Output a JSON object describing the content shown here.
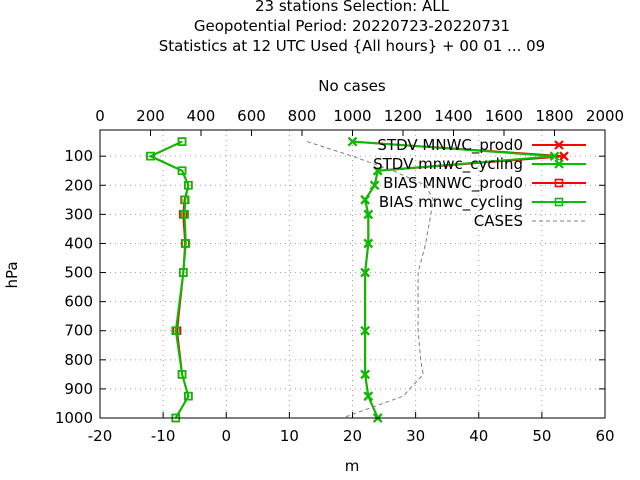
{
  "chart_data": {
    "type": "line",
    "title_lines": [
      "23 stations Selection: ALL",
      "Geopotential  Period: 20220723-20220731",
      "Statistics at 12 UTC  Used {All hours} + 00 01 ... 09"
    ],
    "xlabel": "m",
    "x2label": "No cases",
    "ylabel": "hPa",
    "xlim": [
      -20,
      60
    ],
    "x2lim": [
      0,
      2000
    ],
    "ylim": [
      1000,
      10
    ],
    "xticks": [
      "-20",
      "-10",
      "0",
      "10",
      "20",
      "30",
      "40",
      "50",
      "60"
    ],
    "x2ticks": [
      "0",
      "200",
      "400",
      "600",
      "800",
      "1000",
      "1200",
      "1400",
      "1600",
      "1800",
      "2000"
    ],
    "yticks": [
      "100",
      "200",
      "300",
      "400",
      "500",
      "600",
      "700",
      "800",
      "900",
      "1000"
    ],
    "grid": true,
    "legend_position": "top-right",
    "series": [
      {
        "name": "STDV MNWC_prod0",
        "color": "#ff0000",
        "marker": "x",
        "axis": "x1",
        "points": [
          [
            20,
            50
          ],
          [
            53.5,
            100
          ],
          [
            24,
            150
          ],
          [
            23.5,
            200
          ],
          [
            22,
            250
          ],
          [
            22.5,
            300
          ],
          [
            22.5,
            400
          ],
          [
            22,
            500
          ],
          [
            22,
            700
          ],
          [
            22,
            850
          ],
          [
            22.5,
            925
          ],
          [
            24,
            1000
          ]
        ]
      },
      {
        "name": "STDV mnwc_cycling",
        "color": "#00c000",
        "marker": "x",
        "axis": "x1",
        "points": [
          [
            20,
            50
          ],
          [
            52,
            100
          ],
          [
            24,
            150
          ],
          [
            23.5,
            200
          ],
          [
            22,
            250
          ],
          [
            22.5,
            300
          ],
          [
            22.5,
            400
          ],
          [
            22,
            500
          ],
          [
            22,
            700
          ],
          [
            22,
            850
          ],
          [
            22.5,
            925
          ],
          [
            24,
            1000
          ]
        ]
      },
      {
        "name": "BIAS MNWC_prod0",
        "color": "#ff0000",
        "marker": "square",
        "axis": "x1",
        "points": [
          [
            -7,
            50
          ],
          [
            -12,
            100
          ],
          [
            -7,
            150
          ],
          [
            -6,
            200
          ],
          [
            -6.6,
            250
          ],
          [
            -6.8,
            300
          ],
          [
            -6.5,
            400
          ],
          [
            -6.8,
            500
          ],
          [
            -7.8,
            700
          ],
          [
            -7,
            850
          ],
          [
            -6,
            925
          ],
          [
            -8,
            1000
          ]
        ]
      },
      {
        "name": "BIAS mnwc_cycling",
        "color": "#00c000",
        "marker": "square",
        "axis": "x1",
        "points": [
          [
            -7,
            50
          ],
          [
            -12,
            100
          ],
          [
            -7,
            150
          ],
          [
            -6,
            200
          ],
          [
            -6.5,
            250
          ],
          [
            -6.6,
            300
          ],
          [
            -6.4,
            400
          ],
          [
            -6.8,
            500
          ],
          [
            -8,
            700
          ],
          [
            -7,
            850
          ],
          [
            -6,
            925
          ],
          [
            -8,
            1000
          ]
        ]
      },
      {
        "name": "CASES",
        "color": "#808080",
        "marker": "none",
        "dashed": true,
        "axis": "x2",
        "points": [
          [
            820,
            50
          ],
          [
            1000,
            100
          ],
          [
            1160,
            150
          ],
          [
            1290,
            200
          ],
          [
            1320,
            250
          ],
          [
            1310,
            300
          ],
          [
            1290,
            400
          ],
          [
            1260,
            500
          ],
          [
            1260,
            600
          ],
          [
            1260,
            700
          ],
          [
            1270,
            800
          ],
          [
            1280,
            850
          ],
          [
            1200,
            925
          ],
          [
            960,
            1000
          ]
        ]
      }
    ]
  }
}
